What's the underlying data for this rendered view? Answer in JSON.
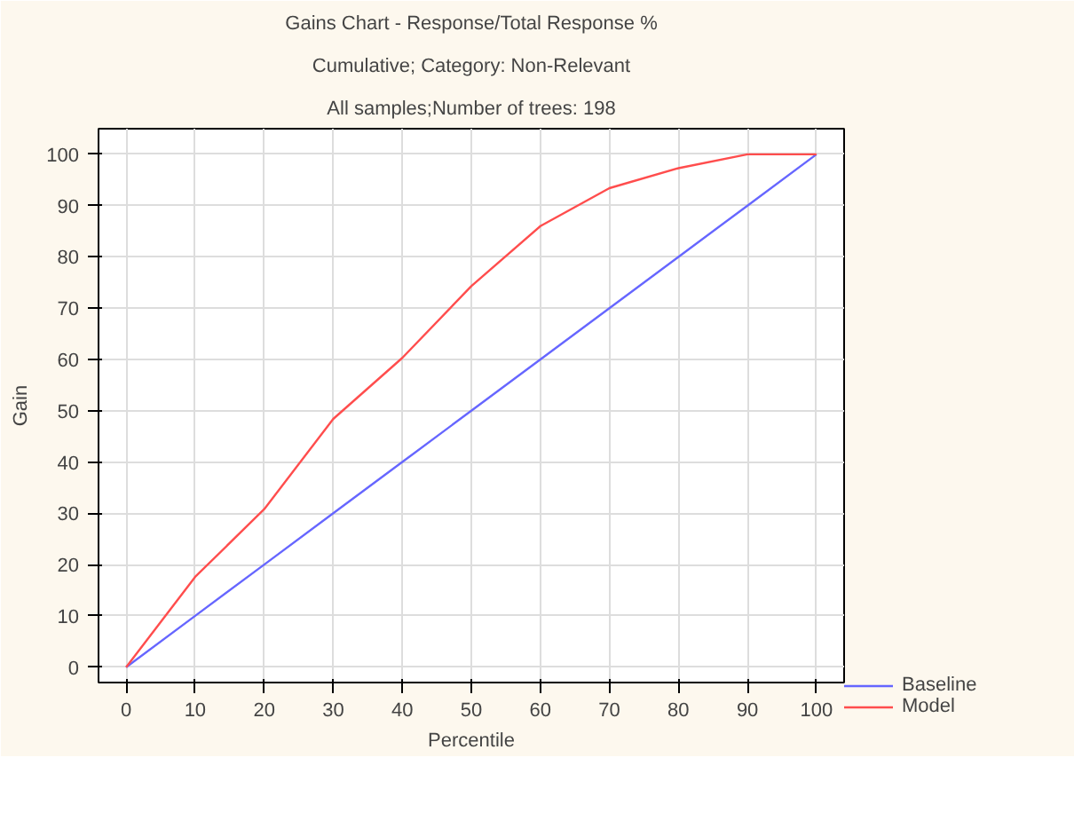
{
  "chart_data": {
    "type": "line",
    "title": "Gains Chart - Response/Total Response %",
    "subtitle": "Cumulative; Category: Non-Relevant",
    "annotations": [
      "All samples;Number of trees: 198"
    ],
    "xlabel": "Percentile",
    "ylabel": "Gain",
    "x": [
      0,
      10,
      20,
      30,
      40,
      50,
      60,
      70,
      80,
      90,
      100
    ],
    "series": [
      {
        "name": "Baseline",
        "color": "#6666ff",
        "values": [
          0,
          10,
          20,
          30,
          40,
          50,
          60,
          70,
          80,
          90,
          100
        ]
      },
      {
        "name": "Model",
        "color": "#ff4d4d",
        "values": [
          0,
          17.6,
          30.8,
          48.4,
          60.3,
          74.3,
          86,
          93.4,
          97.3,
          100,
          100
        ]
      }
    ],
    "xlim": [
      -4,
      104
    ],
    "ylim": [
      -3,
      105
    ],
    "xticks": [
      0,
      10,
      20,
      30,
      40,
      50,
      60,
      70,
      80,
      90,
      100
    ],
    "yticks": [
      0,
      10,
      20,
      30,
      40,
      50,
      60,
      70,
      80,
      90,
      100
    ],
    "grid": true,
    "legend": "bottom right",
    "marker": "none",
    "line_style": "solid"
  }
}
